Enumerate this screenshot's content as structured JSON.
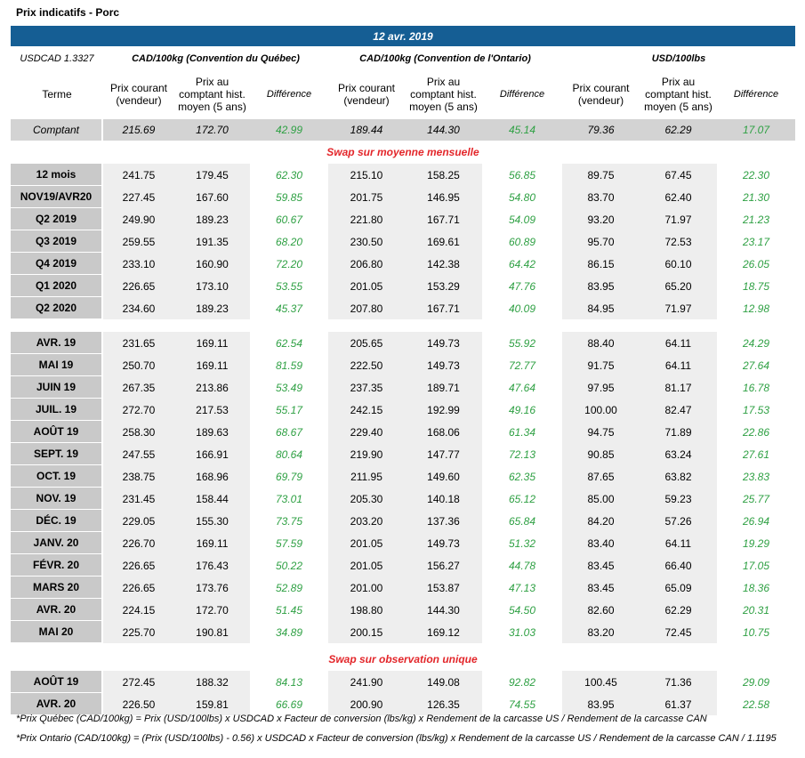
{
  "title": "Prix indicatifs - Porc",
  "date": "12 avr. 2019",
  "fx": "USDCAD 1.3327",
  "groups": [
    "CAD/100kg (Convention du Québec)",
    "CAD/100kg (Convention de l'Ontario)",
    "USD/100lbs"
  ],
  "columns": [
    "Terme",
    "Prix courant (vendeur)",
    "Prix au comptant hist. moyen (5 ans)",
    "Différence",
    "Prix courant (vendeur)",
    "Prix au comptant hist. moyen (5 ans)",
    "Différence",
    "Prix courant (vendeur)",
    "Prix au comptant hist. moyen (5 ans)",
    "Différence"
  ],
  "spot": {
    "label": "Comptant",
    "values": [
      "215.69",
      "172.70",
      "42.99",
      "189.44",
      "144.30",
      "45.14",
      "79.36",
      "62.29",
      "17.07"
    ]
  },
  "sections": [
    {
      "title": "Swap sur moyenne mensuelle",
      "blocks": [
        {
          "rows": [
            {
              "label": "12 mois",
              "values": [
                "241.75",
                "179.45",
                "62.30",
                "215.10",
                "158.25",
                "56.85",
                "89.75",
                "67.45",
                "22.30"
              ]
            },
            {
              "label": "NOV19/AVR20",
              "values": [
                "227.45",
                "167.60",
                "59.85",
                "201.75",
                "146.95",
                "54.80",
                "83.70",
                "62.40",
                "21.30"
              ]
            },
            {
              "label": "Q2 2019",
              "values": [
                "249.90",
                "189.23",
                "60.67",
                "221.80",
                "167.71",
                "54.09",
                "93.20",
                "71.97",
                "21.23"
              ]
            },
            {
              "label": "Q3 2019",
              "values": [
                "259.55",
                "191.35",
                "68.20",
                "230.50",
                "169.61",
                "60.89",
                "95.70",
                "72.53",
                "23.17"
              ]
            },
            {
              "label": "Q4 2019",
              "values": [
                "233.10",
                "160.90",
                "72.20",
                "206.80",
                "142.38",
                "64.42",
                "86.15",
                "60.10",
                "26.05"
              ]
            },
            {
              "label": "Q1 2020",
              "values": [
                "226.65",
                "173.10",
                "53.55",
                "201.05",
                "153.29",
                "47.76",
                "83.95",
                "65.20",
                "18.75"
              ]
            },
            {
              "label": "Q2 2020",
              "values": [
                "234.60",
                "189.23",
                "45.37",
                "207.80",
                "167.71",
                "40.09",
                "84.95",
                "71.97",
                "12.98"
              ]
            }
          ]
        },
        {
          "rows": [
            {
              "label": "AVR. 19",
              "values": [
                "231.65",
                "169.11",
                "62.54",
                "205.65",
                "149.73",
                "55.92",
                "88.40",
                "64.11",
                "24.29"
              ]
            },
            {
              "label": "MAI 19",
              "values": [
                "250.70",
                "169.11",
                "81.59",
                "222.50",
                "149.73",
                "72.77",
                "91.75",
                "64.11",
                "27.64"
              ]
            },
            {
              "label": "JUIN 19",
              "values": [
                "267.35",
                "213.86",
                "53.49",
                "237.35",
                "189.71",
                "47.64",
                "97.95",
                "81.17",
                "16.78"
              ]
            },
            {
              "label": "JUIL. 19",
              "values": [
                "272.70",
                "217.53",
                "55.17",
                "242.15",
                "192.99",
                "49.16",
                "100.00",
                "82.47",
                "17.53"
              ]
            },
            {
              "label": "AOÛT 19",
              "values": [
                "258.30",
                "189.63",
                "68.67",
                "229.40",
                "168.06",
                "61.34",
                "94.75",
                "71.89",
                "22.86"
              ]
            },
            {
              "label": "SEPT. 19",
              "values": [
                "247.55",
                "166.91",
                "80.64",
                "219.90",
                "147.77",
                "72.13",
                "90.85",
                "63.24",
                "27.61"
              ]
            },
            {
              "label": "OCT. 19",
              "values": [
                "238.75",
                "168.96",
                "69.79",
                "211.95",
                "149.60",
                "62.35",
                "87.65",
                "63.82",
                "23.83"
              ]
            },
            {
              "label": "NOV. 19",
              "values": [
                "231.45",
                "158.44",
                "73.01",
                "205.30",
                "140.18",
                "65.12",
                "85.00",
                "59.23",
                "25.77"
              ]
            },
            {
              "label": "DÉC. 19",
              "values": [
                "229.05",
                "155.30",
                "73.75",
                "203.20",
                "137.36",
                "65.84",
                "84.20",
                "57.26",
                "26.94"
              ]
            },
            {
              "label": "JANV. 20",
              "values": [
                "226.70",
                "169.11",
                "57.59",
                "201.05",
                "149.73",
                "51.32",
                "83.40",
                "64.11",
                "19.29"
              ]
            },
            {
              "label": "FÉVR. 20",
              "values": [
                "226.65",
                "176.43",
                "50.22",
                "201.05",
                "156.27",
                "44.78",
                "83.45",
                "66.40",
                "17.05"
              ]
            },
            {
              "label": "MARS 20",
              "values": [
                "226.65",
                "173.76",
                "52.89",
                "201.00",
                "153.87",
                "47.13",
                "83.45",
                "65.09",
                "18.36"
              ]
            },
            {
              "label": "AVR. 20",
              "values": [
                "224.15",
                "172.70",
                "51.45",
                "198.80",
                "144.30",
                "54.50",
                "82.60",
                "62.29",
                "20.31"
              ]
            },
            {
              "label": "MAI 20",
              "values": [
                "225.70",
                "190.81",
                "34.89",
                "200.15",
                "169.12",
                "31.03",
                "83.20",
                "72.45",
                "10.75"
              ]
            }
          ]
        }
      ]
    },
    {
      "title": "Swap sur observation unique",
      "blocks": [
        {
          "rows": [
            {
              "label": "AOÛT 19",
              "values": [
                "272.45",
                "188.32",
                "84.13",
                "241.90",
                "149.08",
                "92.82",
                "100.45",
                "71.36",
                "29.09"
              ]
            },
            {
              "label": "AVR. 20",
              "values": [
                "226.50",
                "159.81",
                "66.69",
                "200.90",
                "126.35",
                "74.55",
                "83.95",
                "61.37",
                "22.58"
              ]
            }
          ]
        }
      ]
    }
  ],
  "notes": [
    "*Prix Québec (CAD/100kg) = Prix (USD/100lbs) x USDCAD x Facteur de conversion (lbs/kg) x Rendement de la carcasse US / Rendement de la carcasse CAN",
    "*Prix Ontario (CAD/100kg) = (Prix (USD/100lbs) - 0.56) x USDCAD x Facteur de conversion (lbs/kg) x Rendement de la carcasse US / Rendement de la carcasse CAN / 1.1195"
  ]
}
